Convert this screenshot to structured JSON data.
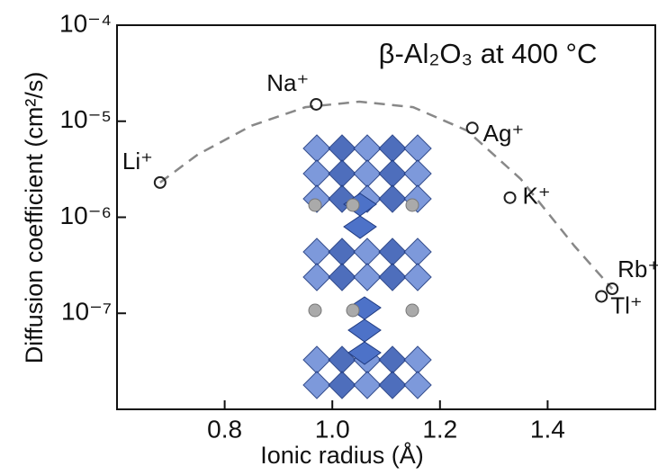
{
  "chart_data": {
    "type": "scatter",
    "title": "β-Al₂O₃  at 400 °C",
    "x_label": "Ionic radius (Å)",
    "y_label": "Diffusion coefficient (cm²/s)",
    "x": [
      0.68,
      0.97,
      1.26,
      1.33,
      1.52,
      1.5
    ],
    "values": [
      2.3e-06,
      1.5e-05,
      8.5e-06,
      1.6e-06,
      1.8e-07,
      1.5e-07
    ],
    "point_labels": [
      "Li⁺",
      "Na⁺",
      "Ag⁺",
      "K⁺",
      "Rb⁺",
      "Tl⁺"
    ],
    "fit": {
      "x": [
        0.68,
        0.75,
        0.85,
        0.95,
        1.05,
        1.15,
        1.25,
        1.35,
        1.45,
        1.52
      ],
      "values": [
        2.3e-06,
        4.5e-06,
        9e-06,
        1.4e-05,
        1.6e-05,
        1.4e-05,
        8e-06,
        2.5e-06,
        5e-07,
        1.8e-07
      ]
    },
    "color": "#222222",
    "fit_color": "#888888",
    "xlim": [
      0.6,
      1.6
    ],
    "xticks": [
      0.8,
      {
        "value": 1.0,
        "label": "1.0"
      },
      1.2,
      1.4
    ],
    "ylim": [
      1e-08,
      0.0001
    ],
    "yscale": "log",
    "yticks": [
      {
        "value": 1e-07,
        "label": "10⁻⁷"
      },
      {
        "value": 1e-06,
        "label": "10⁻⁶"
      },
      {
        "value": 1e-05,
        "label": "10⁻⁵"
      },
      {
        "value": 0.0001,
        "label": "10⁻⁴"
      }
    ]
  }
}
